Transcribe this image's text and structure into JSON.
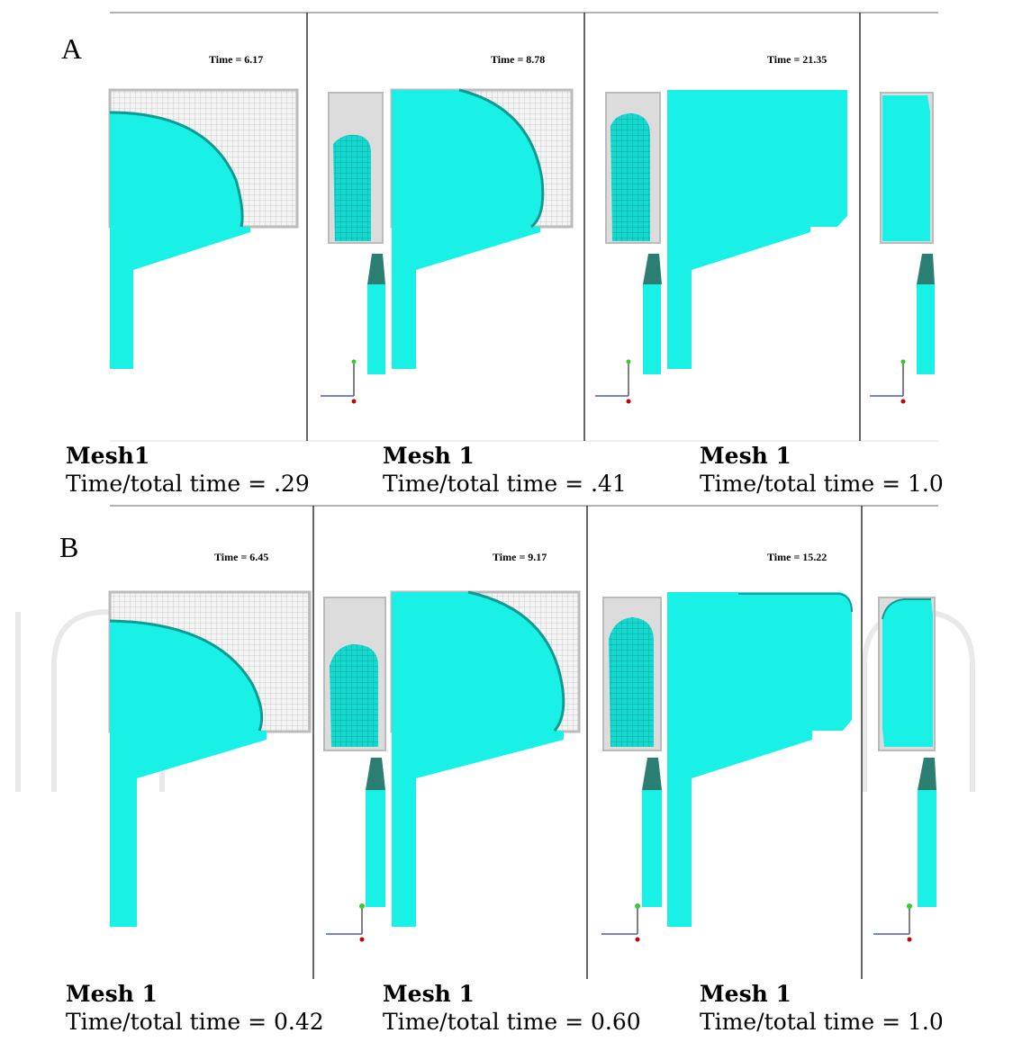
{
  "colors": {
    "fluid": "#19f0e6",
    "fluid_shade": "#0fb3a8",
    "mold_grid": "#c8c8c8",
    "mold_fill": "#e4e4e4",
    "divider": "#333333"
  },
  "figures": [
    {
      "label": "A",
      "frames": [
        {
          "time_label": "Time = 6.17",
          "caption_mesh": "Mesh1",
          "caption_ratio": "Time/total time = .29"
        },
        {
          "time_label": "Time = 8.78",
          "caption_mesh": "Mesh 1",
          "caption_ratio": "Time/total time = .41"
        },
        {
          "time_label": "Time = 21.35",
          "caption_mesh": "Mesh 1",
          "caption_ratio": "Time/total time = 1.0"
        }
      ]
    },
    {
      "label": "B",
      "frames": [
        {
          "time_label": "Time = 6.45",
          "caption_mesh": "Mesh 1",
          "caption_ratio": "Time/total time = 0.42"
        },
        {
          "time_label": "Time = 9.17",
          "caption_mesh": "Mesh 1",
          "caption_ratio": "Time/total time = 0.60"
        },
        {
          "time_label": "Time = 15.22",
          "caption_mesh": "Mesh 1",
          "caption_ratio": "Time/total time = 1.0"
        }
      ]
    }
  ],
  "axis_triad": {
    "icon": "xyz-axis-triad-icon"
  },
  "watermark": {
    "icon": "intechopen-watermark-logo"
  }
}
